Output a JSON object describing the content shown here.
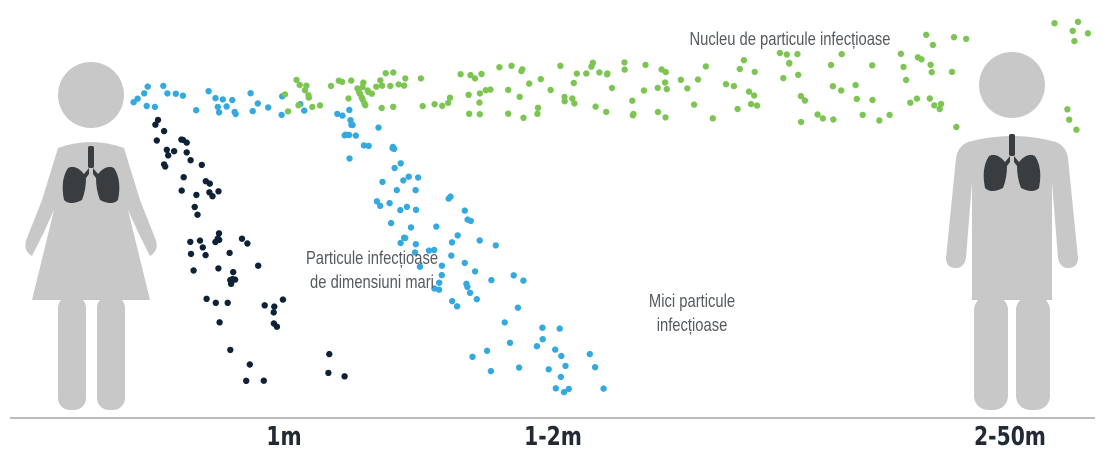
{
  "colors": {
    "figure": "#c8c8c8",
    "lungs": "#3a3d40",
    "large_particles": "#0d2236",
    "small_particles": "#33a9e0",
    "nuclei": "#7dc552",
    "ground": "#bdbdbd",
    "label_text": "#555a5e",
    "distance_text": "#222a33"
  },
  "labels": {
    "nuclei": "Nucleu de particule infecțioase",
    "large_line1": "Particule infecțioase",
    "large_line2": "de dimensiuni mari",
    "small_line1": "Mici particule",
    "small_line2": "infecțioase"
  },
  "distances": {
    "d1": "1m",
    "d2": "1-2m",
    "d3": "2-50m"
  }
}
